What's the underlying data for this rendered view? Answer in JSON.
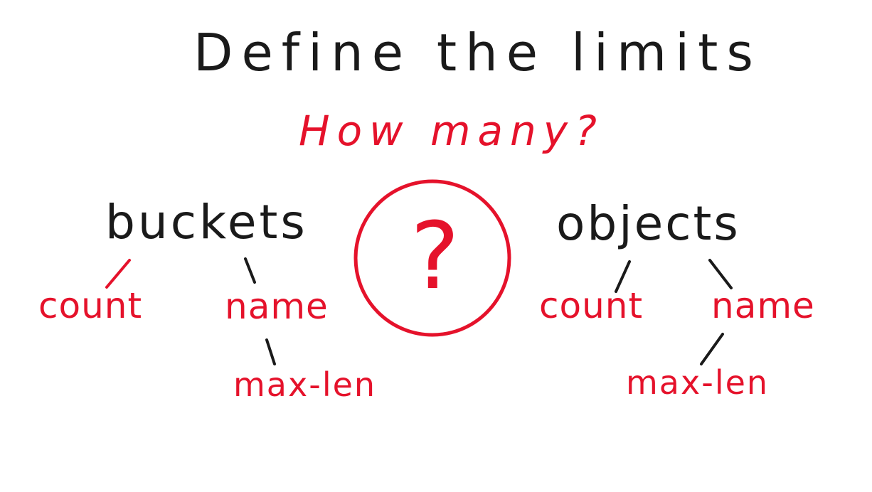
{
  "heading": "Define the limits",
  "question": "How many?",
  "center_symbol": "?",
  "buckets": {
    "label": "buckets",
    "count": "count",
    "name": "name",
    "max_len": "max-len"
  },
  "objects": {
    "label": "objects",
    "count": "count",
    "name": "name",
    "max_len": "max-len"
  },
  "colors": {
    "ink": "#1a1a1a",
    "accent": "#e5122b",
    "background": "#ffffff"
  }
}
